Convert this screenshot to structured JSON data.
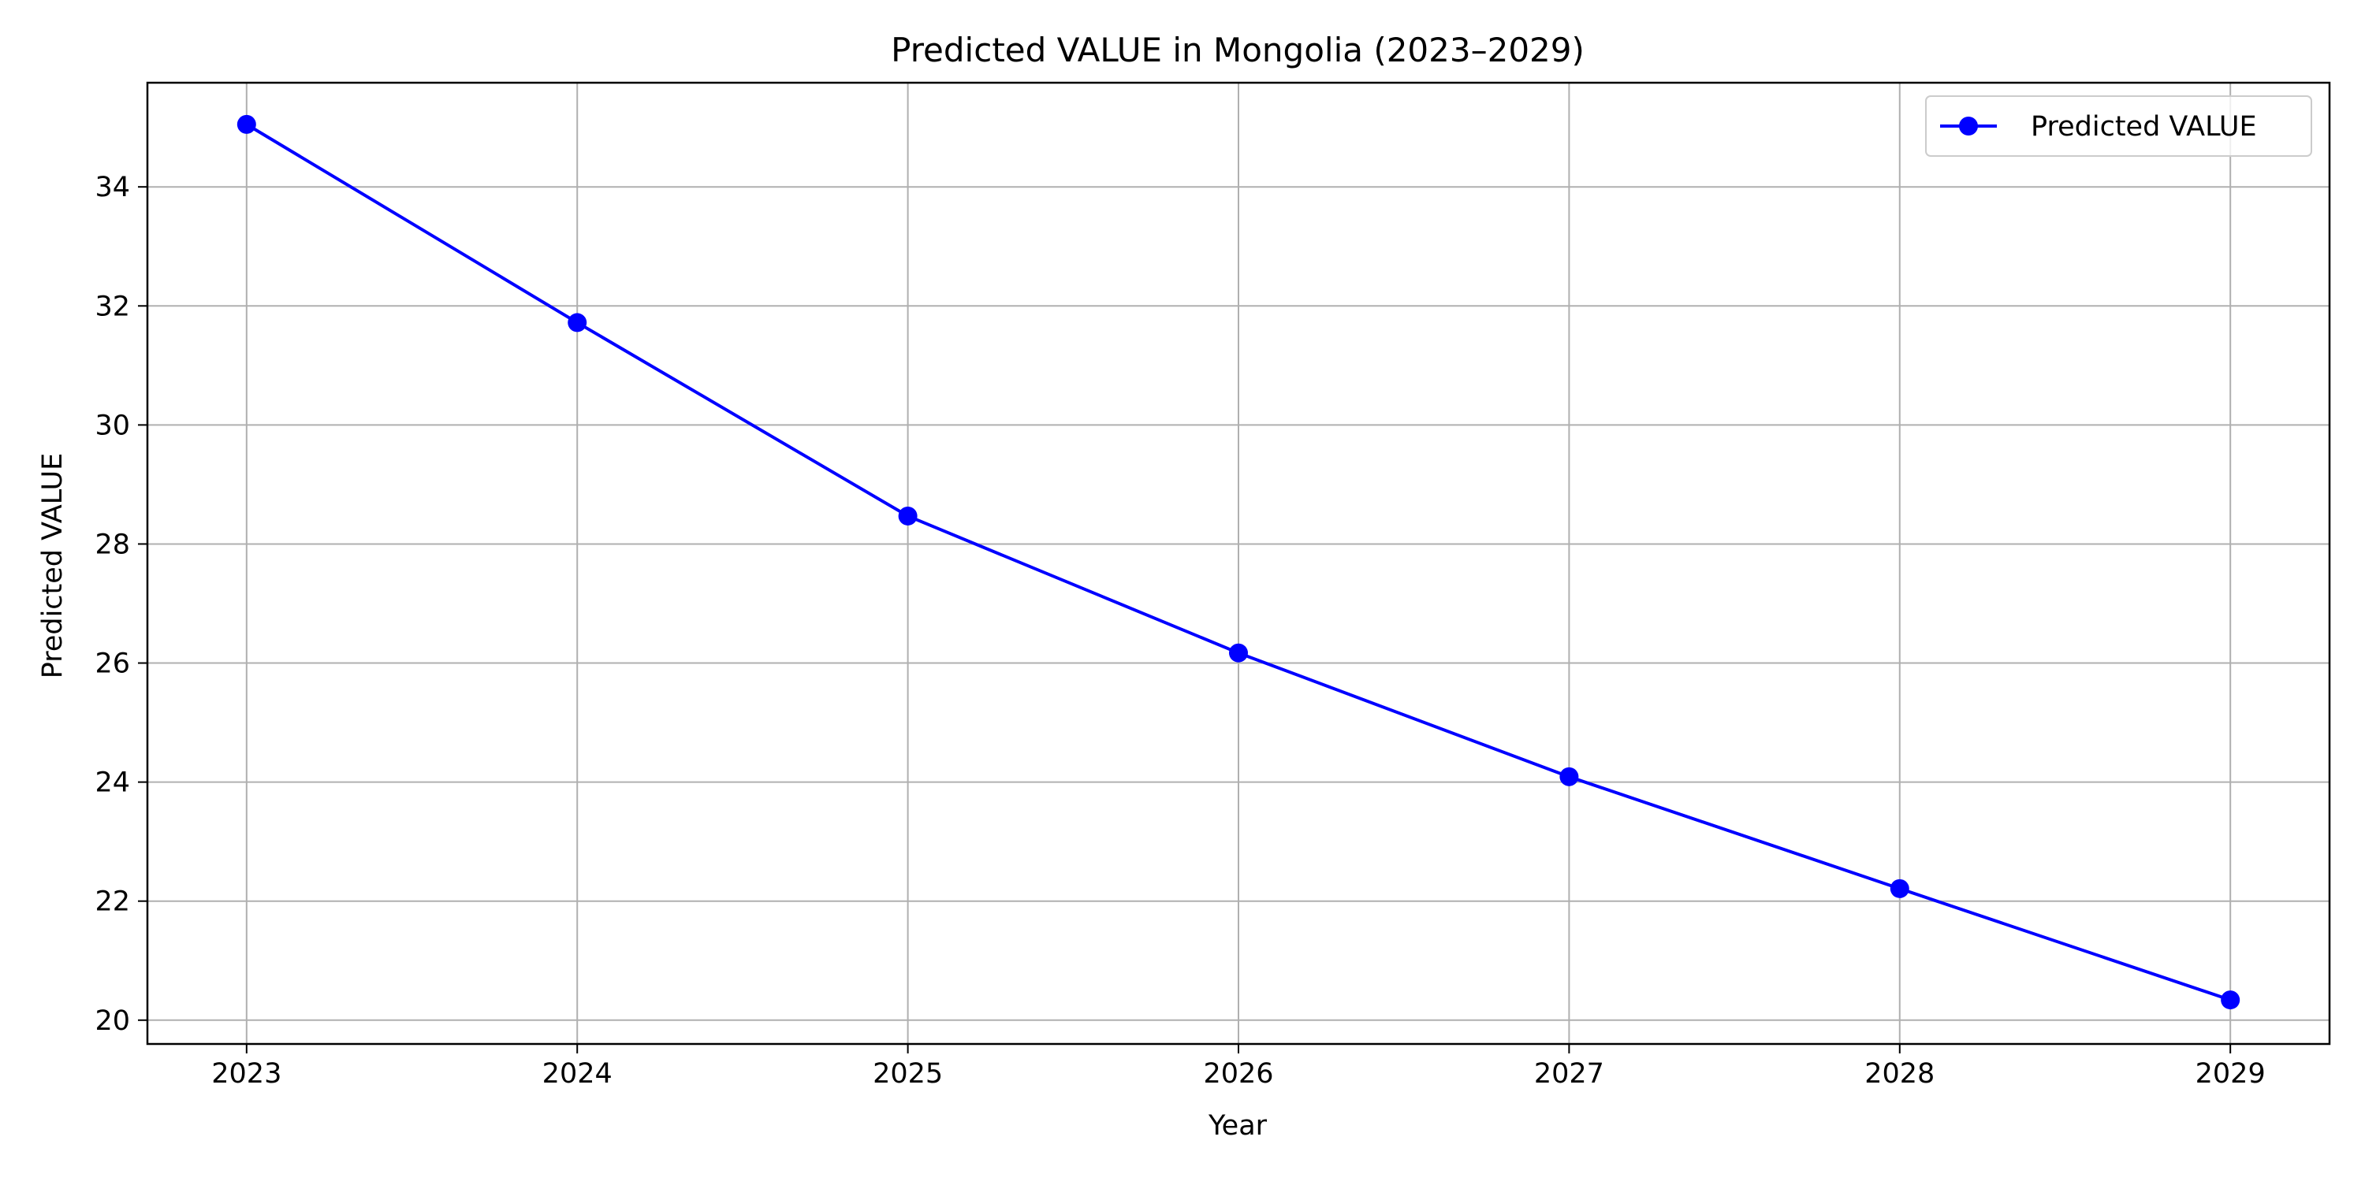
{
  "chart_data": {
    "type": "line",
    "title": "Predicted VALUE in Mongolia (2023–2029)",
    "xlabel": "Year",
    "ylabel": "Predicted VALUE",
    "x": [
      2023,
      2024,
      2025,
      2026,
      2027,
      2028,
      2029
    ],
    "x_ticks": [
      "2023",
      "2024",
      "2025",
      "2026",
      "2027",
      "2028",
      "2029"
    ],
    "y_ticks": [
      "20",
      "22",
      "24",
      "26",
      "28",
      "30",
      "32",
      "34"
    ],
    "xlim": [
      2022.7,
      2029.3
    ],
    "ylim": [
      19.6,
      35.75
    ],
    "grid": true,
    "legend_position": "top-right",
    "series": [
      {
        "name": "Predicted VALUE",
        "color": "#0000ff",
        "marker": "circle",
        "values": [
          35.05,
          31.72,
          28.47,
          26.17,
          24.09,
          22.21,
          20.34
        ]
      }
    ]
  }
}
